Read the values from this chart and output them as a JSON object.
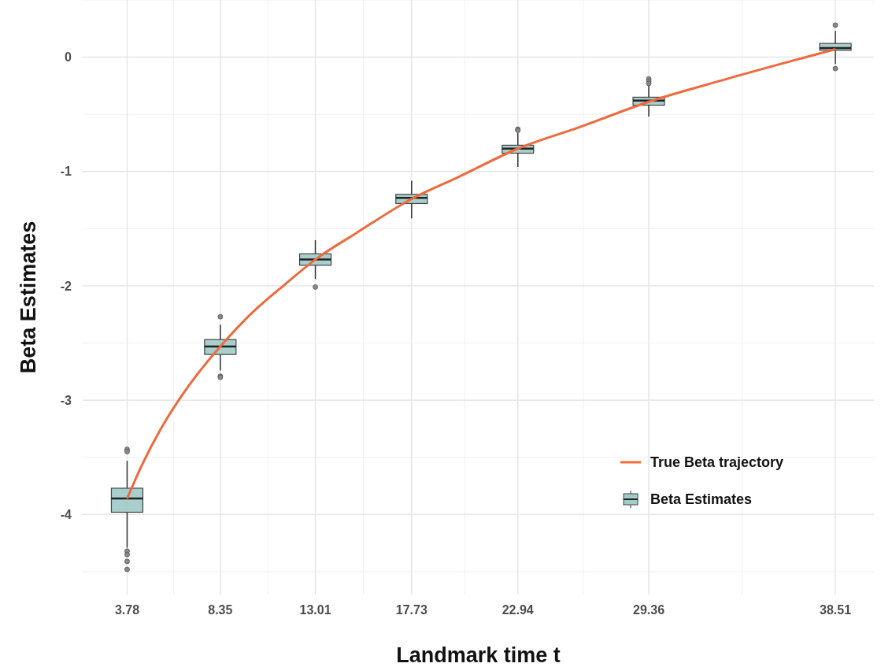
{
  "chart_data": {
    "type": "box",
    "xlabel": "Landmark time t",
    "ylabel": "Beta Estimates",
    "xlim": [
      1.6,
      40.4
    ],
    "xticks": [
      3.78,
      8.35,
      13.01,
      17.73,
      22.94,
      29.36,
      38.51
    ],
    "ylim": [
      -4.7,
      0.5
    ],
    "yticks": [
      -4,
      -3,
      -2,
      -1,
      0
    ],
    "grid": true,
    "legend": "bottom right",
    "series": [
      {
        "name": "True Beta trajectory",
        "type": "line",
        "color": "#ee6a3c",
        "x": [
          3.78,
          4.5,
          5.5,
          6.5,
          7.5,
          8.35,
          10,
          11.5,
          13.01,
          15,
          17.73,
          20,
          22.94,
          26,
          29.36,
          33,
          38.51
        ],
        "values": [
          -3.86,
          -3.57,
          -3.23,
          -2.95,
          -2.71,
          -2.53,
          -2.22,
          -1.99,
          -1.77,
          -1.54,
          -1.24,
          -1.05,
          -0.8,
          -0.61,
          -0.39,
          -0.2,
          0.07
        ]
      },
      {
        "name": "Beta Estimates",
        "type": "box",
        "color": "#a3ccc8",
        "x": [
          3.78,
          8.35,
          13.01,
          17.73,
          22.94,
          29.36,
          38.51
        ],
        "boxes": [
          {
            "low": -4.29,
            "q1": -3.98,
            "median": -3.86,
            "q3": -3.77,
            "high": -3.53,
            "outliers": [
              -3.43,
              -3.45,
              -4.32,
              -4.35,
              -4.41,
              -4.48
            ]
          },
          {
            "low": -2.74,
            "q1": -2.6,
            "median": -2.53,
            "q3": -2.47,
            "high": -2.34,
            "outliers": [
              -2.27,
              -2.79,
              -2.8
            ]
          },
          {
            "low": -1.94,
            "q1": -1.82,
            "median": -1.77,
            "q3": -1.72,
            "high": -1.6,
            "outliers": [
              -2.01
            ]
          },
          {
            "low": -1.41,
            "q1": -1.28,
            "median": -1.23,
            "q3": -1.2,
            "high": -1.08
          },
          {
            "low": -0.96,
            "q1": -0.84,
            "median": -0.8,
            "q3": -0.77,
            "high": -0.66,
            "outliers": [
              -0.63,
              -0.64
            ]
          },
          {
            "low": -0.52,
            "q1": -0.42,
            "median": -0.38,
            "q3": -0.35,
            "high": -0.24,
            "outliers": [
              -0.19,
              -0.21,
              -0.23
            ]
          },
          {
            "low": -0.06,
            "q1": 0.06,
            "median": 0.08,
            "q3": 0.12,
            "high": 0.23,
            "outliers": [
              0.28,
              -0.1
            ]
          }
        ]
      }
    ]
  }
}
